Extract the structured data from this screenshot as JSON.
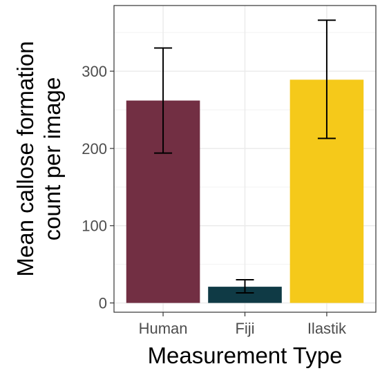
{
  "chart_data": {
    "type": "bar",
    "categories": [
      "Human",
      "Fiji",
      "Ilastik"
    ],
    "values": [
      262,
      21,
      289
    ],
    "error_low": [
      194,
      13,
      213
    ],
    "error_high": [
      330,
      30,
      366
    ],
    "colors": [
      "#722f43",
      "#0f3a45",
      "#f5c91a"
    ],
    "xlabel": "Measurement Type",
    "ylabel_lines": [
      "Mean callose formation",
      "count per image"
    ],
    "ylim": [
      -12,
      385
    ],
    "yticks": [
      0,
      100,
      200,
      300
    ],
    "grid": true,
    "theme": "bw"
  }
}
